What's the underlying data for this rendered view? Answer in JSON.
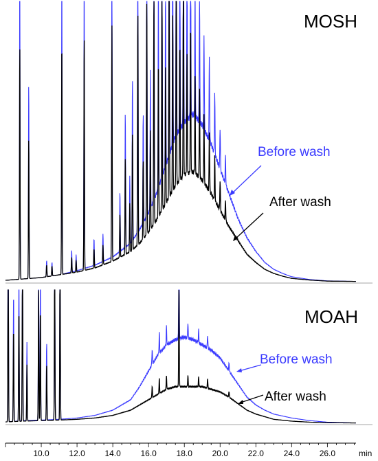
{
  "chart_data": [
    {
      "type": "line",
      "title": "MOSH",
      "x_unit": "min",
      "xlim": [
        8.0,
        27.6
      ],
      "annotations": [
        {
          "text": "Before wash",
          "color": "#3a3aff"
        },
        {
          "text": "After wash",
          "color": "#000000"
        }
      ],
      "series": [
        {
          "name": "Before wash",
          "color": "#3a3aff",
          "envelope_x": [
            8,
            9,
            10,
            11,
            12,
            13,
            14,
            15,
            15.5,
            16,
            16.5,
            17,
            17.5,
            18,
            18.5,
            19,
            19.5,
            20,
            20.5,
            21,
            21.5,
            22,
            22.5,
            23,
            23.5,
            24,
            25,
            26,
            27.6
          ],
          "envelope_y": [
            0.005,
            0.01,
            0.015,
            0.025,
            0.04,
            0.06,
            0.09,
            0.14,
            0.19,
            0.25,
            0.33,
            0.43,
            0.53,
            0.58,
            0.61,
            0.57,
            0.5,
            0.41,
            0.32,
            0.23,
            0.16,
            0.11,
            0.07,
            0.045,
            0.03,
            0.018,
            0.008,
            0.003,
            0.001
          ]
        },
        {
          "name": "After wash",
          "color": "#000000",
          "envelope_x": [
            8,
            9,
            10,
            11,
            12,
            13,
            14,
            15,
            15.5,
            16,
            16.5,
            17,
            17.5,
            18,
            18.5,
            19,
            19.5,
            20,
            20.5,
            21,
            21.5,
            22,
            22.5,
            23,
            23.5,
            24,
            25,
            26,
            27.6
          ],
          "envelope_y": [
            0.005,
            0.01,
            0.015,
            0.025,
            0.035,
            0.05,
            0.075,
            0.11,
            0.14,
            0.18,
            0.23,
            0.29,
            0.35,
            0.39,
            0.4,
            0.37,
            0.32,
            0.26,
            0.2,
            0.15,
            0.1,
            0.07,
            0.045,
            0.03,
            0.02,
            0.012,
            0.006,
            0.002,
            0.001
          ]
        }
      ],
      "peaks": [
        {
          "x": 8.8,
          "h": 1.2
        },
        {
          "x": 9.3,
          "h": 0.72
        },
        {
          "x": 10.3,
          "h": 0.06
        },
        {
          "x": 10.6,
          "h": 0.05
        },
        {
          "x": 11.15,
          "h": 1.2
        },
        {
          "x": 11.7,
          "h": 0.08
        },
        {
          "x": 11.95,
          "h": 0.06
        },
        {
          "x": 12.4,
          "h": 1.2
        },
        {
          "x": 12.95,
          "h": 0.1
        },
        {
          "x": 13.45,
          "h": 0.1
        },
        {
          "x": 13.95,
          "h": 1.2
        },
        {
          "x": 14.4,
          "h": 0.22
        },
        {
          "x": 14.7,
          "h": 0.5
        },
        {
          "x": 14.95,
          "h": 0.25
        },
        {
          "x": 15.1,
          "h": 0.6
        },
        {
          "x": 15.4,
          "h": 1.2
        },
        {
          "x": 15.7,
          "h": 0.4
        },
        {
          "x": 15.9,
          "h": 1.2
        },
        {
          "x": 16.1,
          "h": 0.5
        },
        {
          "x": 16.3,
          "h": 1.2
        },
        {
          "x": 16.55,
          "h": 0.8
        },
        {
          "x": 16.75,
          "h": 1.2
        },
        {
          "x": 16.95,
          "h": 0.7
        },
        {
          "x": 17.15,
          "h": 1.2
        },
        {
          "x": 17.35,
          "h": 0.9
        },
        {
          "x": 17.55,
          "h": 1.2
        },
        {
          "x": 17.75,
          "h": 0.7
        },
        {
          "x": 17.95,
          "h": 1.2
        },
        {
          "x": 18.15,
          "h": 0.6
        },
        {
          "x": 18.35,
          "h": 0.75
        },
        {
          "x": 18.6,
          "h": 0.5
        },
        {
          "x": 18.85,
          "h": 0.45
        },
        {
          "x": 19.1,
          "h": 0.35
        },
        {
          "x": 19.4,
          "h": 0.3
        },
        {
          "x": 19.7,
          "h": 0.22
        },
        {
          "x": 20.0,
          "h": 0.15
        },
        {
          "x": 20.3,
          "h": 0.1
        }
      ]
    },
    {
      "type": "line",
      "title": "MOAH",
      "x_unit": "min",
      "xlim": [
        8.0,
        27.6
      ],
      "annotations": [
        {
          "text": "Before wash",
          "color": "#3a3aff"
        },
        {
          "text": "After wash",
          "color": "#000000"
        }
      ],
      "series": [
        {
          "name": "Before wash",
          "color": "#3a3aff",
          "envelope_x": [
            8,
            9,
            10,
            11,
            12,
            13,
            14,
            15,
            15.5,
            16,
            16.5,
            17,
            17.5,
            18,
            18.5,
            19,
            19.5,
            20,
            20.5,
            21,
            21.5,
            22,
            22.5,
            23,
            24,
            25,
            26,
            27.6
          ],
          "envelope_y": [
            0.005,
            0.01,
            0.012,
            0.015,
            0.02,
            0.03,
            0.05,
            0.09,
            0.14,
            0.2,
            0.26,
            0.3,
            0.32,
            0.33,
            0.32,
            0.3,
            0.28,
            0.25,
            0.2,
            0.15,
            0.1,
            0.07,
            0.05,
            0.035,
            0.02,
            0.01,
            0.004,
            0.001
          ]
        },
        {
          "name": "After wash",
          "color": "#000000",
          "envelope_x": [
            8,
            9,
            10,
            11,
            12,
            13,
            14,
            15,
            15.5,
            16,
            16.5,
            17,
            17.5,
            18,
            18.5,
            19,
            19.5,
            20,
            20.5,
            21,
            21.5,
            22,
            22.5,
            23,
            24,
            25,
            26,
            27.6
          ],
          "envelope_y": [
            0.005,
            0.008,
            0.01,
            0.012,
            0.015,
            0.02,
            0.03,
            0.05,
            0.07,
            0.09,
            0.11,
            0.13,
            0.14,
            0.14,
            0.14,
            0.14,
            0.13,
            0.12,
            0.1,
            0.075,
            0.05,
            0.035,
            0.025,
            0.015,
            0.008,
            0.004,
            0.002,
            0.001
          ]
        }
      ],
      "peaks": [
        {
          "x": 8.15,
          "h": 1.0
        },
        {
          "x": 8.45,
          "h": 0.5
        },
        {
          "x": 8.75,
          "h": 0.6
        },
        {
          "x": 8.95,
          "h": 1.0
        },
        {
          "x": 9.2,
          "h": 0.3
        },
        {
          "x": 9.85,
          "h": 0.7
        },
        {
          "x": 9.95,
          "h": 0.6
        },
        {
          "x": 10.3,
          "h": 0.3
        },
        {
          "x": 10.75,
          "h": 1.0
        },
        {
          "x": 11.05,
          "h": 1.0
        },
        {
          "x": 17.7,
          "h": 0.55
        },
        {
          "x": 16.2,
          "h": 0.06
        },
        {
          "x": 16.6,
          "h": 0.08
        },
        {
          "x": 17.0,
          "h": 0.07
        },
        {
          "x": 18.2,
          "h": 0.06
        },
        {
          "x": 18.8,
          "h": 0.05
        },
        {
          "x": 19.3,
          "h": 0.05
        },
        {
          "x": 20.5,
          "h": 0.03
        }
      ]
    }
  ],
  "x_axis": {
    "ticks": [
      10.0,
      12.0,
      14.0,
      16.0,
      18.0,
      20.0,
      22.0,
      24.0,
      26.0
    ],
    "tick_labels": [
      "10.0",
      "12.0",
      "14.0",
      "16.0",
      "18.0",
      "20.0",
      "22.0",
      "24.0",
      "26.0"
    ],
    "unit_label": "min"
  }
}
